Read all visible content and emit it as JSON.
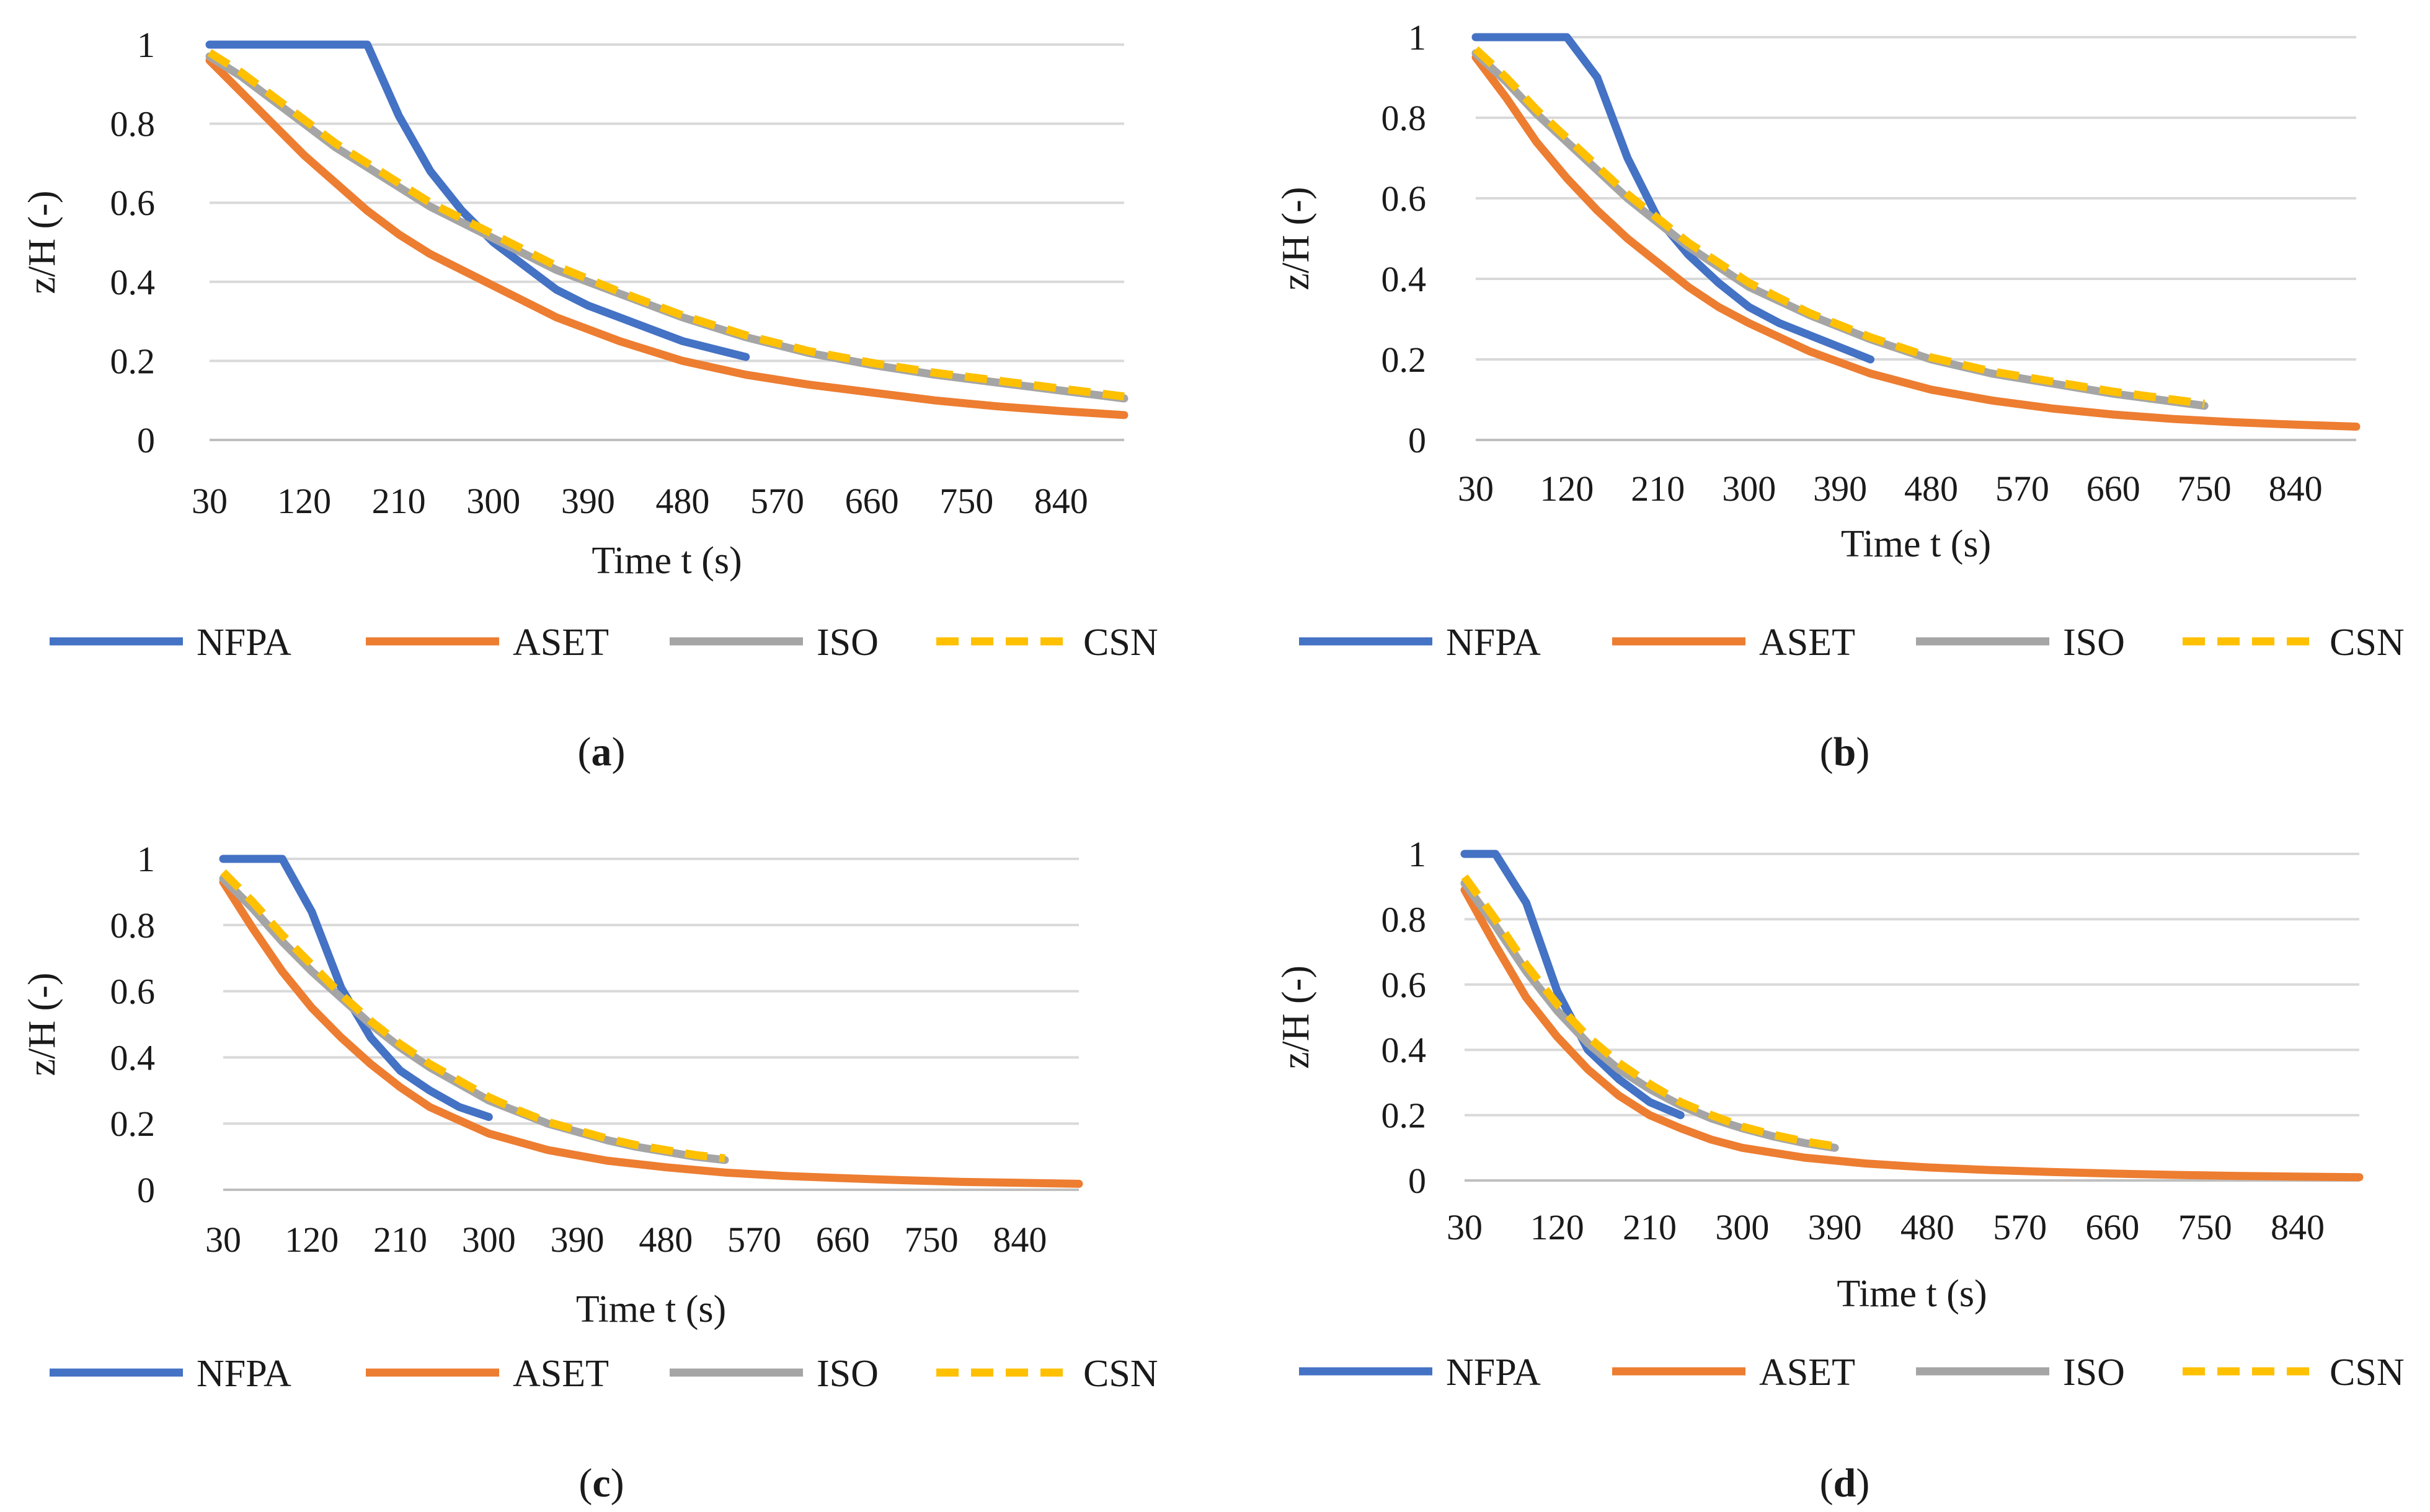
{
  "colors": {
    "NFPA": "#4472C4",
    "ASET": "#ED7D31",
    "ISO": "#A5A5A5",
    "CSN": "#FFC000",
    "grid": "#d9d9d9",
    "axis": "#bfbfbf"
  },
  "chart_data": [
    {
      "type": "line",
      "panel_label": "a",
      "xlabel": "Time t (s)",
      "ylabel": "z/H (-)",
      "x_ticks": [
        "30",
        "120",
        "210",
        "300",
        "390",
        "480",
        "570",
        "660",
        "750",
        "840"
      ],
      "x_range": [
        30,
        900
      ],
      "y_ticks": [
        "0",
        "0.2",
        "0.4",
        "0.6",
        "0.8",
        "1"
      ],
      "ylim": [
        0,
        1
      ],
      "grid": true,
      "legend_position": "bottom",
      "series": [
        {
          "name": "NFPA",
          "style": "solid",
          "x": [
            30,
            60,
            90,
            120,
            150,
            180,
            210,
            240,
            270,
            300,
            330,
            360,
            390,
            420,
            450,
            480,
            510,
            540
          ],
          "y": [
            1,
            1,
            1,
            1,
            1,
            1,
            0.82,
            0.68,
            0.58,
            0.5,
            0.44,
            0.38,
            0.34,
            0.31,
            0.28,
            0.25,
            0.23,
            0.21
          ]
        },
        {
          "name": "ASET",
          "style": "solid",
          "x": [
            30,
            60,
            90,
            120,
            150,
            180,
            210,
            240,
            270,
            300,
            360,
            420,
            480,
            540,
            600,
            660,
            720,
            780,
            840,
            900
          ],
          "y": [
            0.96,
            0.88,
            0.8,
            0.72,
            0.65,
            0.58,
            0.52,
            0.47,
            0.43,
            0.39,
            0.31,
            0.25,
            0.2,
            0.165,
            0.14,
            0.12,
            0.1,
            0.085,
            0.073,
            0.063
          ]
        },
        {
          "name": "ISO",
          "style": "solid",
          "x": [
            30,
            60,
            90,
            120,
            150,
            180,
            210,
            240,
            270,
            300,
            360,
            420,
            480,
            540,
            600,
            660,
            720,
            780,
            840,
            900
          ],
          "y": [
            0.97,
            0.92,
            0.86,
            0.8,
            0.74,
            0.69,
            0.64,
            0.59,
            0.55,
            0.51,
            0.43,
            0.37,
            0.31,
            0.26,
            0.22,
            0.19,
            0.165,
            0.145,
            0.125,
            0.105
          ]
        },
        {
          "name": "CSN",
          "style": "dashed",
          "x": [
            30,
            60,
            90,
            120,
            150,
            180,
            210,
            240,
            270,
            300,
            360,
            420,
            480,
            540,
            600,
            660,
            720,
            780,
            840,
            900
          ],
          "y": [
            0.98,
            0.93,
            0.87,
            0.81,
            0.75,
            0.7,
            0.65,
            0.6,
            0.56,
            0.52,
            0.44,
            0.375,
            0.315,
            0.265,
            0.225,
            0.195,
            0.17,
            0.15,
            0.13,
            0.11
          ]
        }
      ]
    },
    {
      "type": "line",
      "panel_label": "b",
      "xlabel": "Time t (s)",
      "ylabel": "z/H (-)",
      "x_ticks": [
        "30",
        "120",
        "210",
        "300",
        "390",
        "480",
        "570",
        "660",
        "750",
        "840"
      ],
      "x_range": [
        30,
        900
      ],
      "y_ticks": [
        "0",
        "0.2",
        "0.4",
        "0.6",
        "0.8",
        "1"
      ],
      "ylim": [
        0,
        1
      ],
      "grid": true,
      "legend_position": "bottom",
      "series": [
        {
          "name": "NFPA",
          "style": "solid",
          "x": [
            30,
            60,
            90,
            120,
            150,
            180,
            210,
            240,
            270,
            300,
            330,
            360,
            390,
            420
          ],
          "y": [
            1,
            1,
            1,
            1,
            0.9,
            0.7,
            0.55,
            0.46,
            0.39,
            0.33,
            0.29,
            0.26,
            0.23,
            0.2
          ]
        },
        {
          "name": "ASET",
          "style": "solid",
          "x": [
            30,
            60,
            90,
            120,
            150,
            180,
            210,
            240,
            270,
            300,
            360,
            420,
            480,
            540,
            600,
            660,
            720,
            780,
            840,
            900
          ],
          "y": [
            0.95,
            0.85,
            0.74,
            0.65,
            0.57,
            0.5,
            0.44,
            0.38,
            0.33,
            0.29,
            0.22,
            0.165,
            0.125,
            0.098,
            0.078,
            0.063,
            0.052,
            0.044,
            0.038,
            0.033
          ]
        },
        {
          "name": "ISO",
          "style": "solid",
          "x": [
            30,
            60,
            90,
            120,
            150,
            180,
            210,
            240,
            270,
            300,
            360,
            420,
            480,
            540,
            600,
            660,
            720,
            750
          ],
          "y": [
            0.96,
            0.89,
            0.81,
            0.74,
            0.67,
            0.6,
            0.54,
            0.48,
            0.43,
            0.38,
            0.31,
            0.25,
            0.2,
            0.165,
            0.14,
            0.115,
            0.095,
            0.085
          ]
        },
        {
          "name": "CSN",
          "style": "dashed",
          "x": [
            30,
            60,
            90,
            120,
            150,
            180,
            210,
            240,
            270,
            300,
            360,
            420,
            480,
            540,
            600,
            660,
            720,
            750
          ],
          "y": [
            0.97,
            0.9,
            0.82,
            0.75,
            0.68,
            0.61,
            0.55,
            0.49,
            0.44,
            0.39,
            0.315,
            0.255,
            0.205,
            0.17,
            0.145,
            0.12,
            0.1,
            0.09
          ]
        }
      ]
    },
    {
      "type": "line",
      "panel_label": "c",
      "xlabel": "Time t (s)",
      "ylabel": "z/H (-)",
      "x_ticks": [
        "30",
        "120",
        "210",
        "300",
        "390",
        "480",
        "570",
        "660",
        "750",
        "840"
      ],
      "x_range": [
        30,
        900
      ],
      "y_ticks": [
        "0",
        "0.2",
        "0.4",
        "0.6",
        "0.8",
        "1"
      ],
      "ylim": [
        0,
        1
      ],
      "grid": true,
      "legend_position": "bottom",
      "series": [
        {
          "name": "NFPA",
          "style": "solid",
          "x": [
            30,
            60,
            90,
            120,
            150,
            180,
            210,
            240,
            270,
            300
          ],
          "y": [
            1,
            1,
            1,
            0.84,
            0.61,
            0.46,
            0.36,
            0.3,
            0.25,
            0.22
          ]
        },
        {
          "name": "ASET",
          "style": "solid",
          "x": [
            30,
            60,
            90,
            120,
            150,
            180,
            210,
            240,
            270,
            300,
            360,
            420,
            480,
            540,
            600,
            660,
            720,
            780,
            840,
            900
          ],
          "y": [
            0.93,
            0.79,
            0.66,
            0.55,
            0.46,
            0.38,
            0.31,
            0.25,
            0.21,
            0.17,
            0.12,
            0.088,
            0.068,
            0.052,
            0.042,
            0.035,
            0.029,
            0.024,
            0.021,
            0.018
          ]
        },
        {
          "name": "ISO",
          "style": "solid",
          "x": [
            30,
            60,
            90,
            120,
            150,
            180,
            210,
            240,
            270,
            300,
            330,
            360,
            390,
            420,
            450,
            480,
            510,
            540
          ],
          "y": [
            0.94,
            0.85,
            0.75,
            0.66,
            0.58,
            0.5,
            0.43,
            0.37,
            0.32,
            0.27,
            0.235,
            0.2,
            0.175,
            0.15,
            0.13,
            0.115,
            0.1,
            0.09
          ]
        },
        {
          "name": "CSN",
          "style": "dashed",
          "x": [
            30,
            60,
            90,
            120,
            150,
            180,
            210,
            240,
            270,
            300,
            330,
            360,
            390,
            420,
            450,
            480,
            510,
            540
          ],
          "y": [
            0.96,
            0.87,
            0.77,
            0.68,
            0.59,
            0.51,
            0.44,
            0.38,
            0.33,
            0.28,
            0.24,
            0.205,
            0.18,
            0.155,
            0.135,
            0.12,
            0.105,
            0.095
          ]
        }
      ]
    },
    {
      "type": "line",
      "panel_label": "d",
      "xlabel": "Time t (s)",
      "ylabel": "z/H (-)",
      "x_ticks": [
        "30",
        "120",
        "210",
        "300",
        "390",
        "480",
        "570",
        "660",
        "750",
        "840"
      ],
      "x_range": [
        30,
        900
      ],
      "y_ticks": [
        "0",
        "0.2",
        "0.4",
        "0.6",
        "0.8",
        "1"
      ],
      "ylim": [
        0,
        1
      ],
      "grid": true,
      "legend_position": "bottom",
      "series": [
        {
          "name": "NFPA",
          "style": "solid",
          "x": [
            30,
            60,
            90,
            120,
            150,
            180,
            210,
            240
          ],
          "y": [
            1,
            1,
            0.85,
            0.58,
            0.4,
            0.31,
            0.24,
            0.2
          ]
        },
        {
          "name": "ASET",
          "style": "solid",
          "x": [
            30,
            60,
            90,
            120,
            150,
            180,
            210,
            240,
            270,
            300,
            360,
            420,
            480,
            540,
            600,
            660,
            720,
            780,
            840,
            900
          ],
          "y": [
            0.89,
            0.72,
            0.56,
            0.44,
            0.34,
            0.26,
            0.2,
            0.16,
            0.125,
            0.1,
            0.07,
            0.052,
            0.04,
            0.032,
            0.026,
            0.021,
            0.017,
            0.014,
            0.012,
            0.01
          ]
        },
        {
          "name": "ISO",
          "style": "solid",
          "x": [
            30,
            60,
            90,
            120,
            150,
            180,
            210,
            240,
            270,
            300,
            330,
            360,
            390
          ],
          "y": [
            0.91,
            0.78,
            0.64,
            0.52,
            0.42,
            0.34,
            0.28,
            0.23,
            0.19,
            0.16,
            0.135,
            0.115,
            0.1
          ]
        },
        {
          "name": "CSN",
          "style": "dashed",
          "x": [
            30,
            60,
            90,
            120,
            150,
            180,
            210,
            240,
            270,
            300,
            330,
            360,
            390
          ],
          "y": [
            0.93,
            0.8,
            0.66,
            0.54,
            0.44,
            0.36,
            0.295,
            0.24,
            0.2,
            0.165,
            0.14,
            0.12,
            0.105
          ]
        }
      ]
    }
  ]
}
